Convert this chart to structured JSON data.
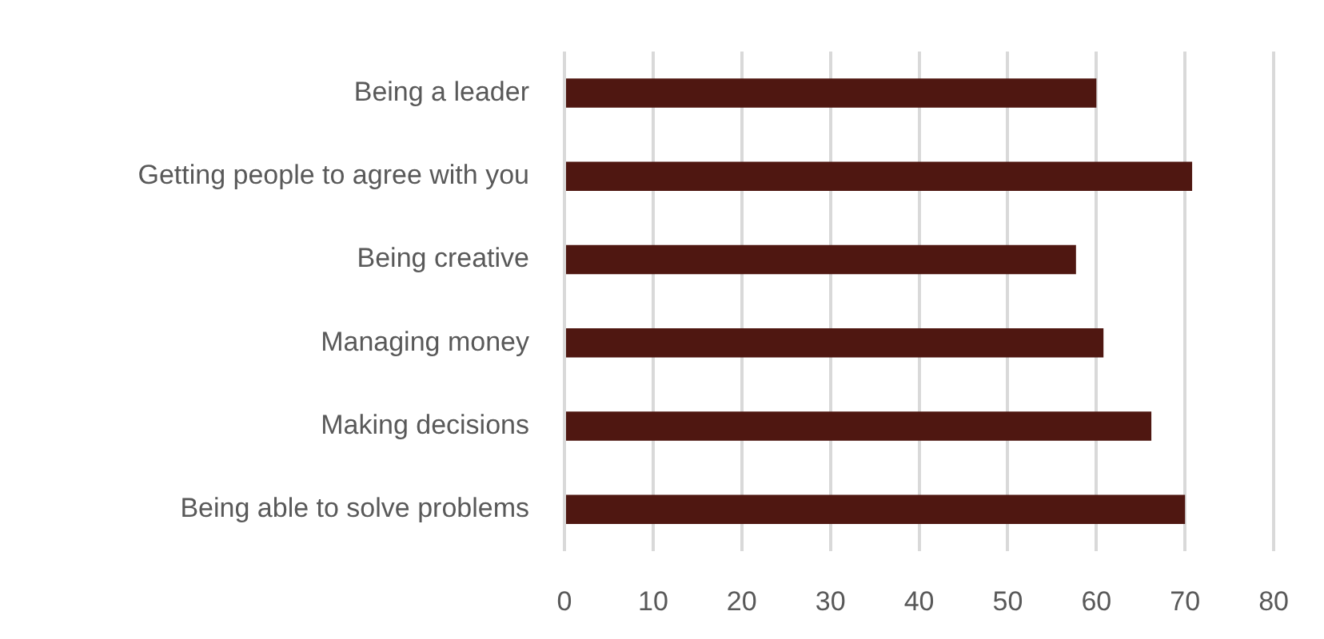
{
  "chart_data": {
    "type": "bar",
    "orientation": "horizontal",
    "categories": [
      "Being a leader",
      "Getting people to agree with you",
      "Being creative",
      "Managing money",
      "Making decisions",
      "Being able to solve problems"
    ],
    "values": [
      60,
      70.8,
      57.7,
      60.8,
      66.2,
      70
    ],
    "color": "#4f1711",
    "xlim": [
      0,
      80
    ],
    "xticks": [
      0,
      10,
      20,
      30,
      40,
      50,
      60,
      70,
      80
    ],
    "grid": "x",
    "legend": false
  }
}
